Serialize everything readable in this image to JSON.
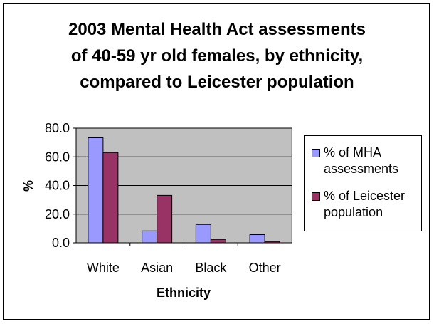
{
  "chart_data": {
    "type": "bar",
    "title_lines": [
      "2003 Mental Health Act assessments",
      "of 40-59 yr old females, by ethnicity,",
      "compared to Leicester population"
    ],
    "xlabel": "Ethnicity",
    "ylabel": "%",
    "categories": [
      "White",
      "Asian",
      "Black",
      "Other"
    ],
    "ylim": [
      0,
      80
    ],
    "yticks": [
      "0.0",
      "20.0",
      "40.0",
      "60.0",
      "80.0"
    ],
    "grid": true,
    "legend_position": "right",
    "series": [
      {
        "name": "% of MHA assessments",
        "color": "#9999ff",
        "values": [
          73.3,
          8.3,
          12.8,
          5.7
        ]
      },
      {
        "name": "% of Leicester population",
        "color": "#993366",
        "values": [
          63.0,
          33.1,
          2.4,
          0.9
        ]
      }
    ],
    "plot_background": "#c0c0c0"
  }
}
